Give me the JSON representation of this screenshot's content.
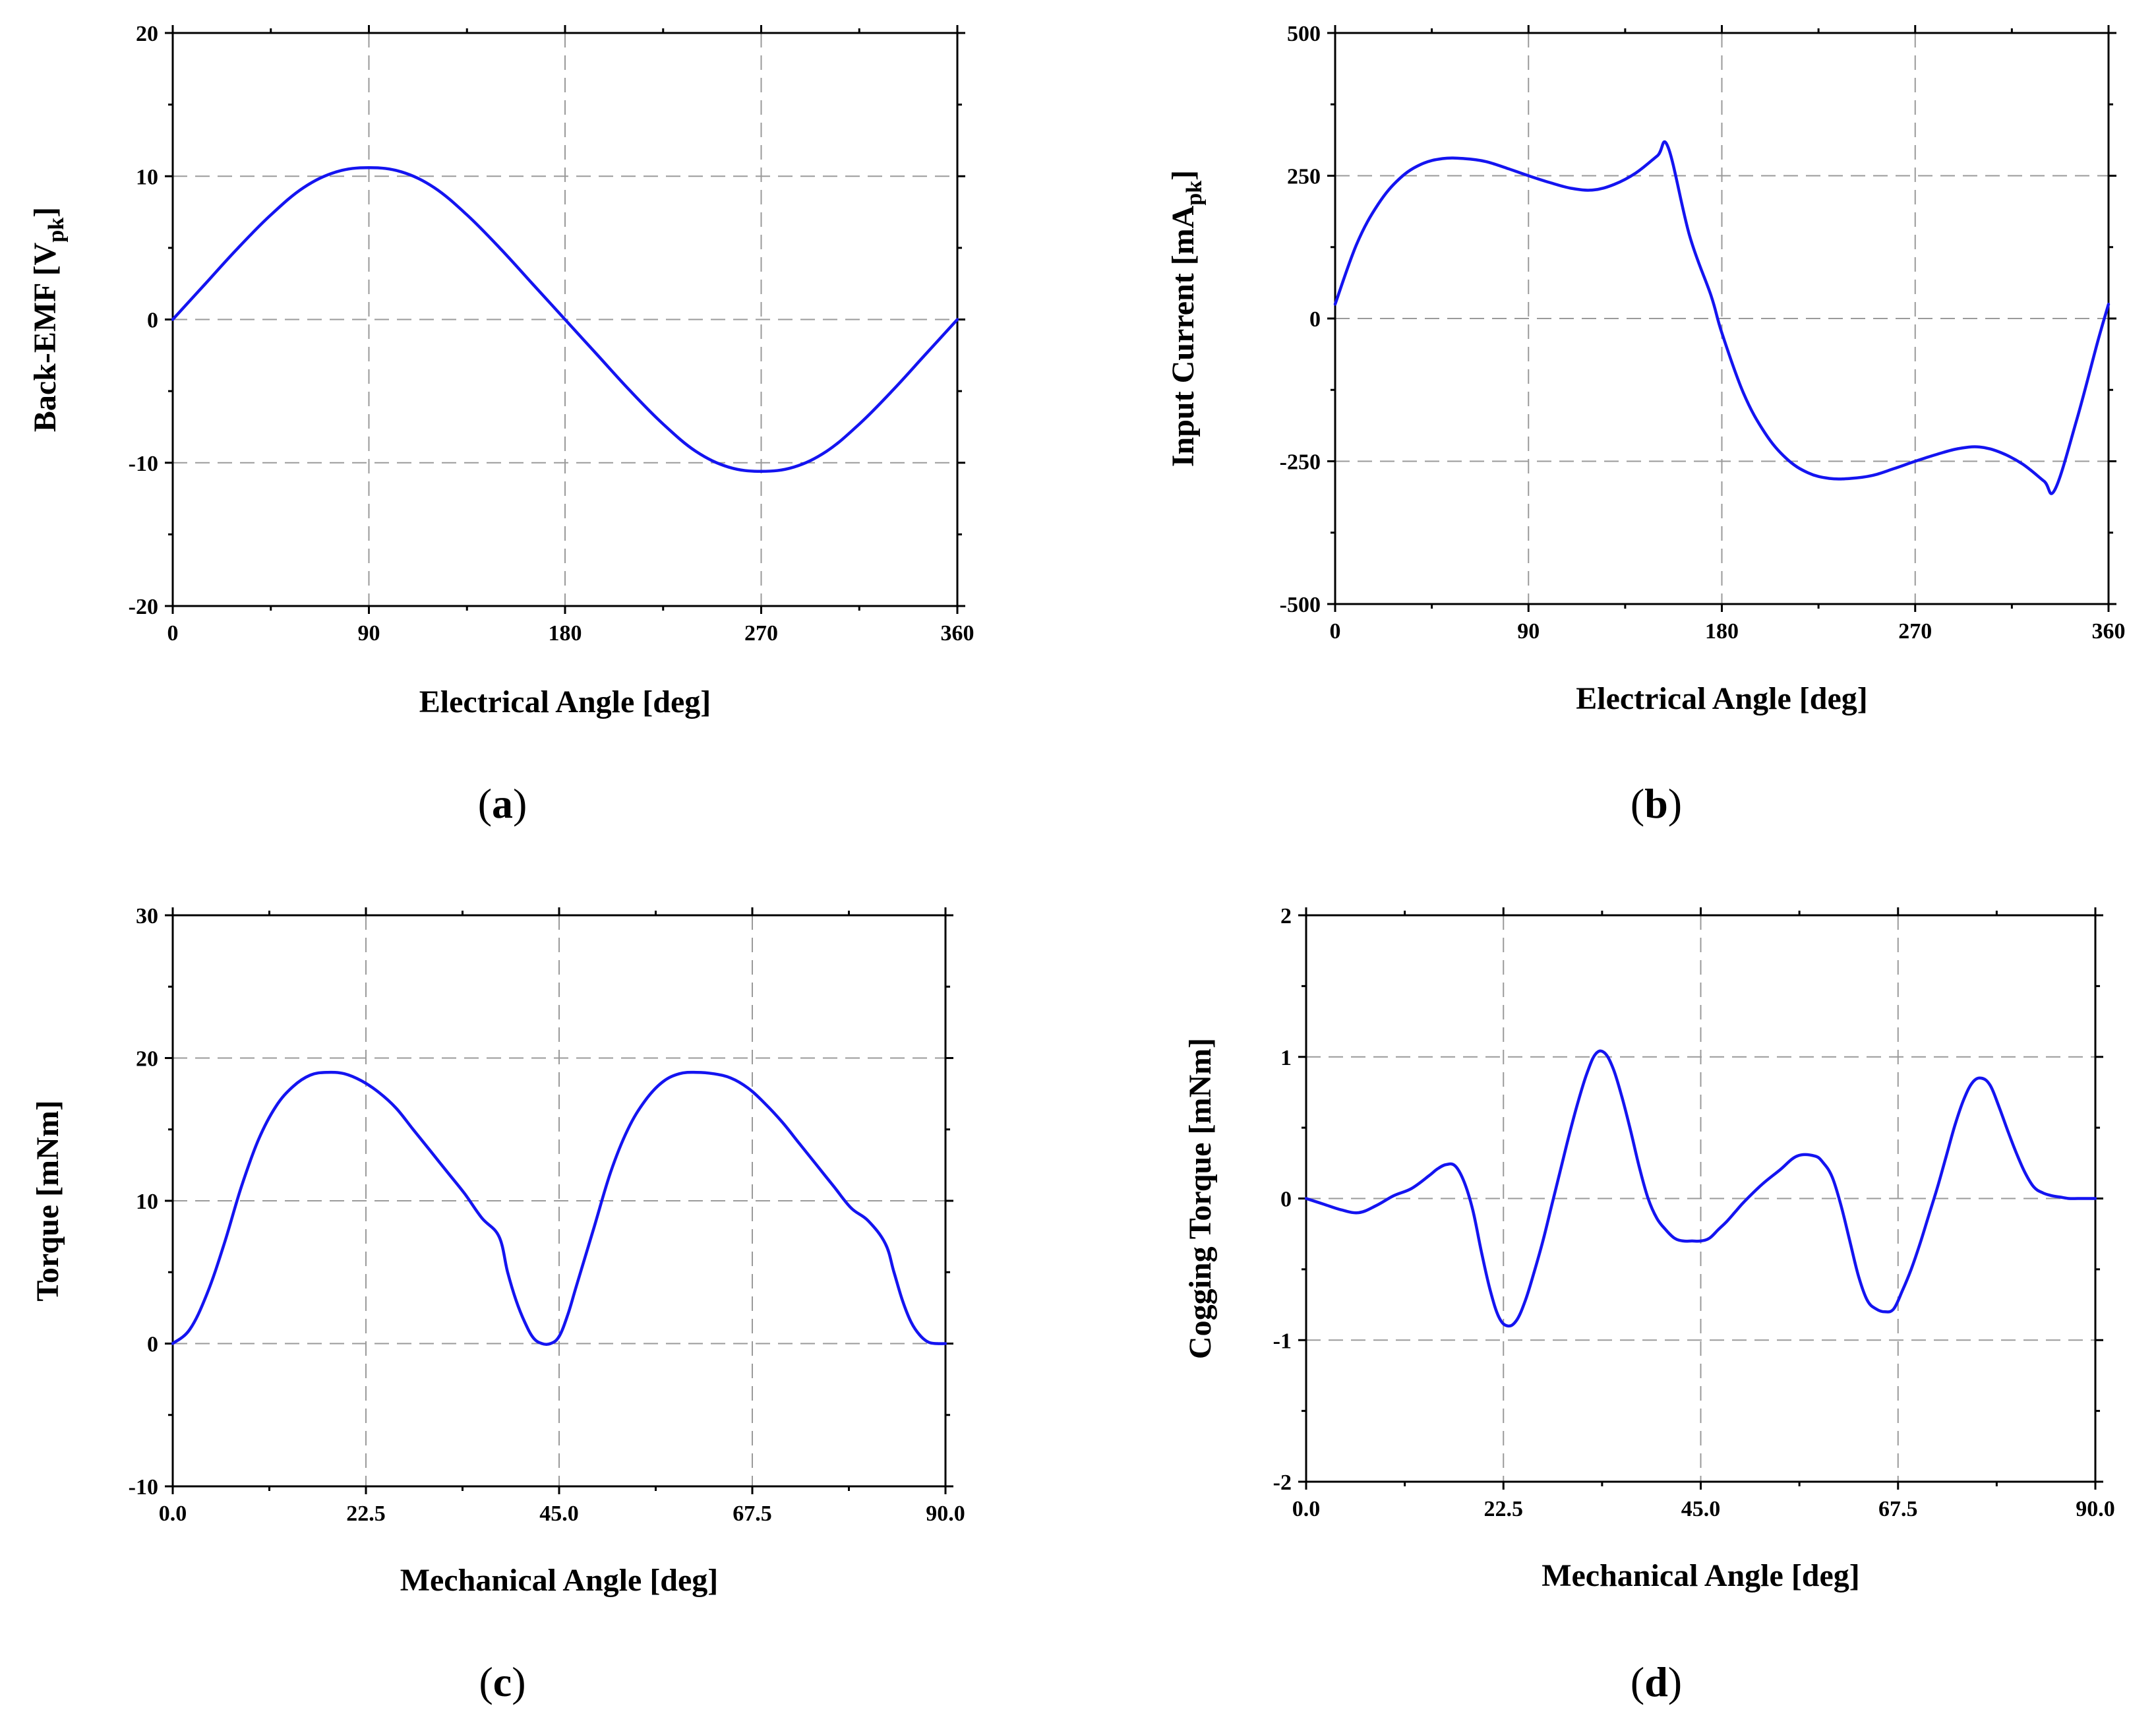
{
  "colors": {
    "series": "#1414f0",
    "grid": "#9a9a9a",
    "axis": "#000000"
  },
  "chart_data": [
    {
      "id": "a",
      "type": "line",
      "panel_label": "a",
      "xlabel": "Electrical Angle [deg]",
      "ylabel": "Back-EMF [V",
      "ylabel_sub": "pk",
      "ylabel_tail": "]",
      "xlim": [
        0,
        360
      ],
      "ylim": [
        -20,
        20
      ],
      "xticks": [
        0,
        90,
        180,
        270,
        360
      ],
      "xtick_labels": [
        "0",
        "90",
        "180",
        "270",
        "360"
      ],
      "yticks": [
        -20,
        -10,
        0,
        10,
        20
      ],
      "ytick_labels": [
        "-20",
        "-10",
        "0",
        "10",
        "20"
      ],
      "series": [
        {
          "name": "Back-EMF",
          "x": [
            0,
            15,
            30,
            45,
            60,
            75,
            90,
            105,
            120,
            135,
            150,
            165,
            180,
            195,
            210,
            225,
            240,
            255,
            270,
            285,
            300,
            315,
            330,
            345,
            360
          ],
          "y": [
            0,
            2.5,
            5.0,
            7.3,
            9.2,
            10.3,
            10.6,
            10.3,
            9.2,
            7.3,
            5.0,
            2.5,
            0,
            -2.5,
            -5.0,
            -7.3,
            -9.2,
            -10.3,
            -10.6,
            -10.3,
            -9.2,
            -7.3,
            -5.0,
            -2.5,
            0
          ]
        }
      ]
    },
    {
      "id": "b",
      "type": "line",
      "panel_label": "b",
      "xlabel": "Electrical Angle [deg]",
      "ylabel": "Input Current [mA",
      "ylabel_sub": "pk",
      "ylabel_tail": "]",
      "xlim": [
        0,
        360
      ],
      "ylim": [
        -500,
        500
      ],
      "xticks": [
        0,
        90,
        180,
        270,
        360
      ],
      "xtick_labels": [
        "0",
        "90",
        "180",
        "270",
        "360"
      ],
      "yticks": [
        -500,
        -250,
        0,
        250,
        500
      ],
      "ytick_labels": [
        "-500",
        "-250",
        "0",
        "250",
        "500"
      ],
      "series": [
        {
          "name": "Input Current",
          "x": [
            0,
            10,
            20,
            30,
            40,
            50,
            60,
            70,
            80,
            90,
            100,
            110,
            120,
            130,
            140,
            150,
            155,
            165,
            175,
            180,
            190,
            200,
            210,
            220,
            230,
            240,
            250,
            260,
            270,
            280,
            290,
            300,
            310,
            320,
            330,
            335,
            345,
            355,
            360
          ],
          "y": [
            25,
            130,
            200,
            245,
            270,
            280,
            280,
            275,
            263,
            250,
            238,
            228,
            225,
            235,
            255,
            285,
            300,
            145,
            40,
            -25,
            -130,
            -200,
            -245,
            -270,
            -280,
            -280,
            -275,
            -263,
            -250,
            -238,
            -228,
            -225,
            -235,
            -255,
            -285,
            -300,
            -180,
            -40,
            25
          ]
        }
      ]
    },
    {
      "id": "c",
      "type": "line",
      "panel_label": "c",
      "xlabel": "Mechanical Angle [deg]",
      "ylabel": "Torque [mNm]",
      "ylabel_sub": "",
      "ylabel_tail": "",
      "xlim": [
        0,
        90
      ],
      "ylim": [
        -10,
        30
      ],
      "xticks": [
        0,
        22.5,
        45,
        67.5,
        90
      ],
      "xtick_labels": [
        "0.0",
        "22.5",
        "45.0",
        "67.5",
        "90.0"
      ],
      "yticks": [
        -10,
        0,
        10,
        20,
        30
      ],
      "ytick_labels": [
        "-10",
        "0",
        "10",
        "20",
        "30"
      ],
      "series": [
        {
          "name": "Torque",
          "x": [
            0,
            2,
            4,
            6,
            8,
            10,
            12,
            14,
            16,
            18,
            20,
            22,
            24,
            26,
            28,
            30,
            32,
            34,
            36,
            38,
            39,
            40,
            41,
            42,
            43,
            44,
            45,
            46,
            47,
            49,
            51,
            53,
            55,
            57,
            59,
            61,
            63,
            65,
            67,
            69,
            71,
            73,
            75,
            77,
            79,
            81,
            83,
            84,
            85,
            86,
            87,
            88,
            89,
            90
          ],
          "y": [
            0,
            1,
            3.5,
            7,
            11,
            14.3,
            16.6,
            18,
            18.8,
            19,
            18.9,
            18.4,
            17.6,
            16.5,
            15,
            13.5,
            12,
            10.5,
            8.8,
            7.5,
            5,
            3,
            1.5,
            0.4,
            0,
            0,
            0.5,
            2,
            4,
            8,
            12,
            15,
            17,
            18.3,
            18.9,
            19,
            18.9,
            18.6,
            17.9,
            16.8,
            15.5,
            14,
            12.5,
            11,
            9.5,
            8.6,
            7,
            5,
            3,
            1.5,
            0.6,
            0.1,
            0,
            0
          ]
        }
      ]
    },
    {
      "id": "d",
      "type": "line",
      "panel_label": "d",
      "xlabel": "Mechanical Angle [deg]",
      "ylabel": "Cogging Torque [mNm]",
      "ylabel_sub": "",
      "ylabel_tail": "",
      "xlim": [
        0,
        90
      ],
      "ylim": [
        -2,
        2
      ],
      "xticks": [
        0,
        22.5,
        45,
        67.5,
        90
      ],
      "xtick_labels": [
        "0.0",
        "22.5",
        "45.0",
        "67.5",
        "90.0"
      ],
      "yticks": [
        -2,
        -1,
        0,
        1,
        2
      ],
      "ytick_labels": [
        "-2",
        "-1",
        "0",
        "1",
        "2"
      ],
      "series": [
        {
          "name": "Cogging Torque",
          "x": [
            0,
            2,
            4,
            6,
            8,
            10,
            12,
            14,
            15,
            16,
            17,
            18,
            19,
            20,
            21,
            22,
            23,
            24,
            25,
            26,
            27,
            28,
            29,
            30,
            31,
            32,
            33,
            34,
            35,
            36,
            37,
            38,
            39,
            40,
            41,
            42,
            43,
            44,
            45,
            46,
            47,
            48,
            49,
            50,
            52,
            54,
            56,
            58,
            59,
            60,
            61,
            62,
            63,
            64,
            65,
            66,
            67,
            68,
            69,
            70,
            71,
            72,
            73,
            74,
            75,
            76,
            77,
            78,
            79,
            80,
            81,
            82,
            83,
            84,
            85,
            86,
            87,
            88,
            89,
            90
          ],
          "y": [
            0,
            -0.04,
            -0.08,
            -0.1,
            -0.05,
            0.02,
            0.07,
            0.16,
            0.21,
            0.24,
            0.23,
            0.12,
            -0.08,
            -0.38,
            -0.65,
            -0.84,
            -0.9,
            -0.86,
            -0.72,
            -0.52,
            -0.3,
            -0.05,
            0.2,
            0.45,
            0.68,
            0.88,
            1.02,
            1.03,
            0.92,
            0.72,
            0.48,
            0.22,
            0.0,
            -0.14,
            -0.22,
            -0.28,
            -0.3,
            -0.3,
            -0.3,
            -0.28,
            -0.22,
            -0.16,
            -0.09,
            -0.02,
            0.1,
            0.2,
            0.3,
            0.3,
            0.25,
            0.15,
            -0.05,
            -0.3,
            -0.55,
            -0.72,
            -0.78,
            -0.8,
            -0.78,
            -0.65,
            -0.5,
            -0.32,
            -0.12,
            0.08,
            0.3,
            0.52,
            0.7,
            0.82,
            0.85,
            0.8,
            0.65,
            0.48,
            0.32,
            0.18,
            0.08,
            0.04,
            0.02,
            0.01,
            0,
            0,
            0,
            0
          ]
        }
      ]
    }
  ]
}
